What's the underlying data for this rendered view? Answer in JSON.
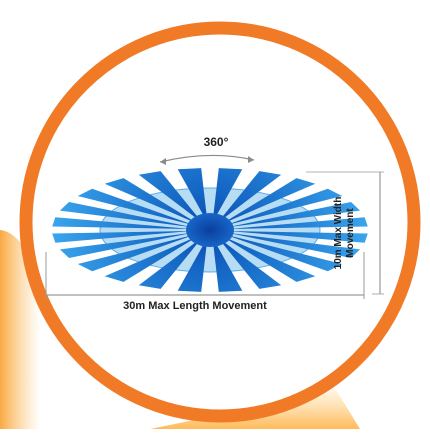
{
  "diagram": {
    "angle_label": "360°",
    "length_label": "30m Max Length Movement",
    "width_label": "10m Max Width Movement",
    "ray_count": 24
  },
  "colors": {
    "ring": "#f07a26",
    "glow_left": "#f9a43a",
    "glow_bottom": "#ffb347",
    "ellipse_fill": "#8ecbf0",
    "ray_fill": "#2e9ae6",
    "ray_dark": "#1466c4",
    "center": "#0a48b0",
    "dimension_line": "#9a9a9a",
    "text": "#222222"
  }
}
